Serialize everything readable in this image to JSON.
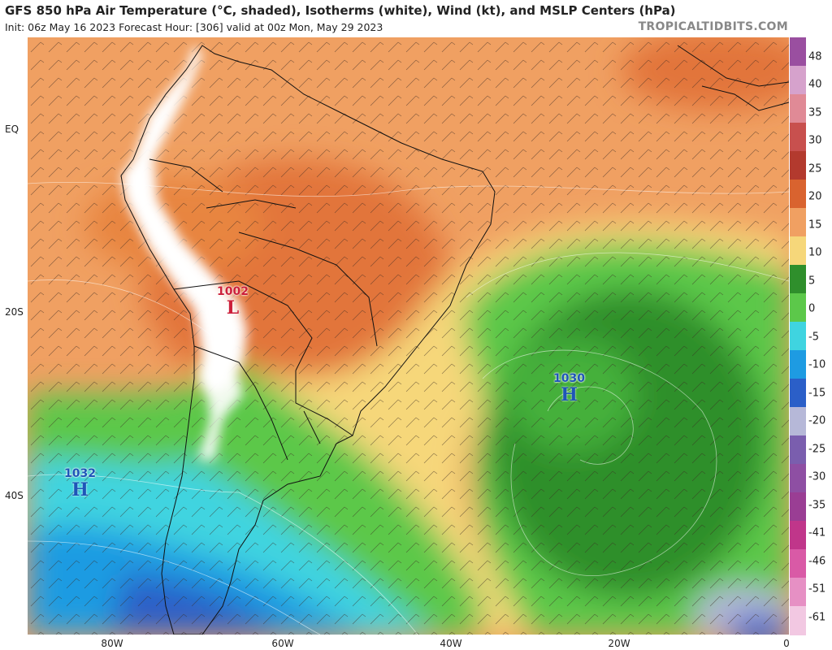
{
  "header": {
    "title": "GFS 850 hPa Air Temperature (°C, shaded), Isotherms (white), Wind (kt), and MSLP Centers (hPa)",
    "subtitle": "Init: 06z May 16 2023   Forecast Hour: [306]   valid at 00z Mon, May 29 2023",
    "brand": "TROPICALTIDBITS.COM"
  },
  "axes": {
    "y_labels": [
      "EQ",
      "20S",
      "40S"
    ],
    "x_labels": [
      "80W",
      "60W",
      "40W",
      "20W",
      "0"
    ]
  },
  "pressure_centers": [
    {
      "type": "L",
      "value": "1002",
      "color": "#cc1f3a"
    },
    {
      "type": "H",
      "value": "1030",
      "color": "#1e55b8"
    },
    {
      "type": "H",
      "value": "1032",
      "color": "#1e55b8"
    }
  ],
  "colorbar": {
    "labels": [
      "48",
      "40",
      "35",
      "30",
      "25",
      "20",
      "15",
      "10",
      "5",
      "0",
      "-5",
      "-10",
      "-15",
      "-20",
      "-25",
      "-30",
      "-35",
      "-41",
      "-46",
      "-51",
      "-61"
    ],
    "colors": [
      "#9a4fa0",
      "#d6a2cc",
      "#e08a96",
      "#c8504e",
      "#b33a2e",
      "#d9632f",
      "#f0a062",
      "#f6d77a",
      "#2f8f2c",
      "#5cc84a",
      "#3fd4e0",
      "#1e9be2",
      "#2b5fc8",
      "#b6b8d8",
      "#7a5eae",
      "#8e4fa3",
      "#9a3e94",
      "#c0368a",
      "#d95aa6",
      "#e690c4",
      "#f2c8e2"
    ]
  }
}
